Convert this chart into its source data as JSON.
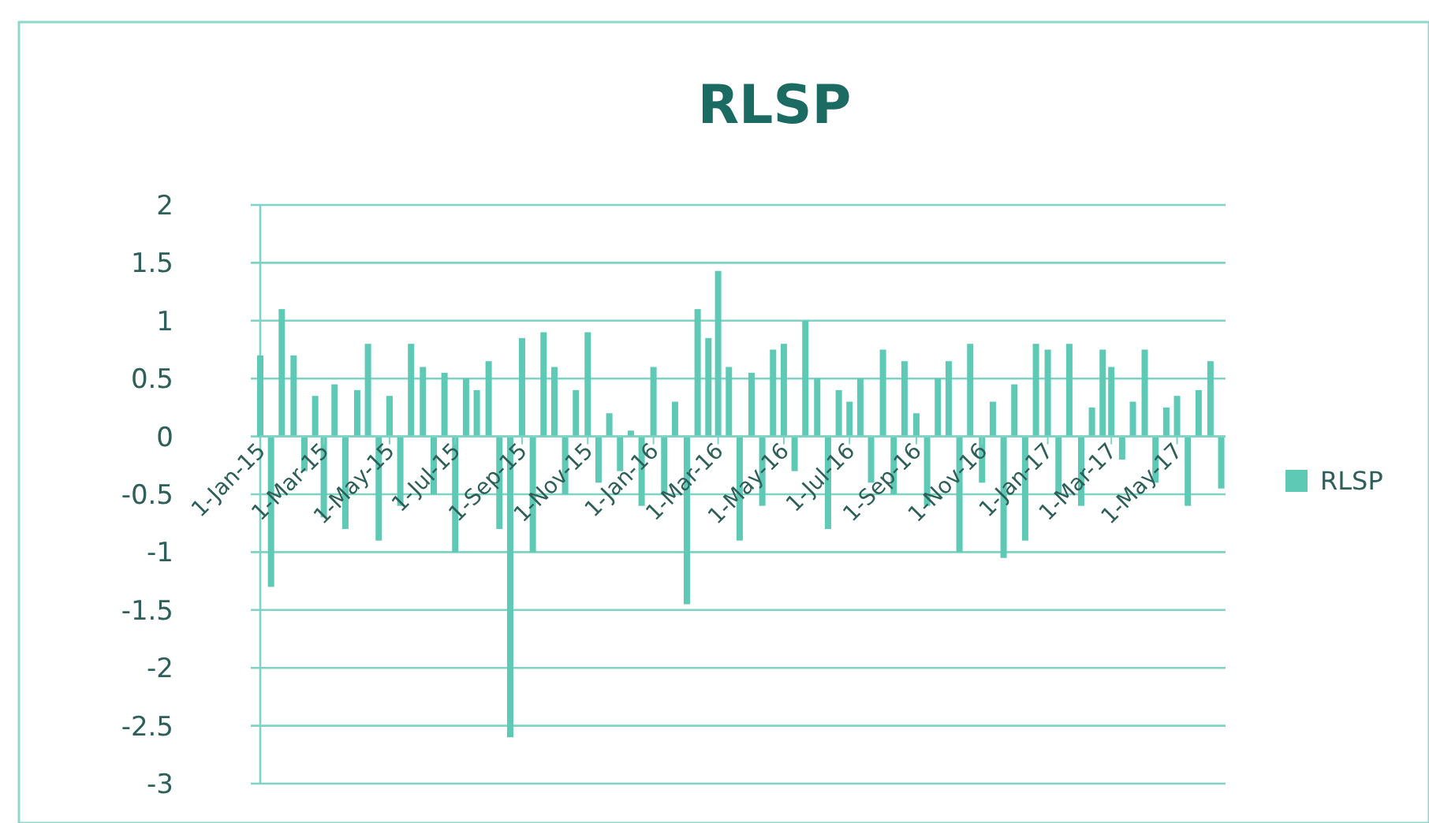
{
  "chart_data": {
    "type": "bar",
    "title": "RLSP",
    "x": [
      "2015-01-01",
      "2015-01-11",
      "2015-01-21",
      "2015-02-01",
      "2015-02-11",
      "2015-02-21",
      "2015-03-01",
      "2015-03-11",
      "2015-03-21",
      "2015-04-01",
      "2015-04-11",
      "2015-04-21",
      "2015-05-01",
      "2015-05-11",
      "2015-05-21",
      "2015-06-01",
      "2015-06-11",
      "2015-06-21",
      "2015-07-01",
      "2015-07-11",
      "2015-07-21",
      "2015-08-01",
      "2015-08-11",
      "2015-08-21",
      "2015-09-01",
      "2015-09-11",
      "2015-09-21",
      "2015-10-01",
      "2015-10-11",
      "2015-10-21",
      "2015-11-01",
      "2015-11-11",
      "2015-11-21",
      "2015-12-01",
      "2015-12-11",
      "2015-12-21",
      "2016-01-01",
      "2016-01-11",
      "2016-01-21",
      "2016-02-01",
      "2016-02-11",
      "2016-02-21",
      "2016-03-01",
      "2016-03-11",
      "2016-03-21",
      "2016-04-01",
      "2016-04-11",
      "2016-04-21",
      "2016-05-01",
      "2016-05-11",
      "2016-05-21",
      "2016-06-01",
      "2016-06-11",
      "2016-06-21",
      "2016-07-01",
      "2016-07-11",
      "2016-07-21",
      "2016-08-01",
      "2016-08-11",
      "2016-08-21",
      "2016-09-01",
      "2016-09-11",
      "2016-09-21",
      "2016-10-01",
      "2016-10-11",
      "2016-10-21",
      "2016-11-01",
      "2016-11-11",
      "2016-11-21",
      "2016-12-01",
      "2016-12-11",
      "2016-12-21",
      "2017-01-01",
      "2017-01-11",
      "2017-01-21",
      "2017-02-01",
      "2017-02-11",
      "2017-02-21",
      "2017-03-01",
      "2017-03-11",
      "2017-03-21",
      "2017-04-01",
      "2017-04-11",
      "2017-04-21",
      "2017-05-01",
      "2017-05-11",
      "2017-05-21",
      "2017-06-01",
      "2017-06-11"
    ],
    "series": [
      {
        "name": "RLSP",
        "color": "#5ec9b5",
        "values": [
          0.7,
          -1.3,
          1.1,
          0.7,
          -0.3,
          0.35,
          -0.7,
          0.45,
          -0.8,
          0.4,
          0.8,
          -0.9,
          0.35,
          -0.6,
          0.8,
          0.6,
          -0.5,
          0.55,
          -1.0,
          0.5,
          0.4,
          0.65,
          -0.8,
          -2.6,
          0.85,
          -1.0,
          0.9,
          0.6,
          -0.5,
          0.4,
          0.9,
          -0.4,
          0.2,
          -0.3,
          0.05,
          -0.6,
          0.6,
          -0.5,
          0.3,
          -1.45,
          1.1,
          0.85,
          1.43,
          0.6,
          -0.9,
          0.55,
          -0.6,
          0.75,
          0.8,
          -0.3,
          1.0,
          0.5,
          -0.8,
          0.4,
          0.3,
          0.5,
          -0.4,
          0.75,
          -0.5,
          0.65,
          0.2,
          -0.6,
          0.5,
          0.65,
          -1.0,
          0.8,
          -0.4,
          0.3,
          -1.05,
          0.45,
          -0.9,
          0.8,
          0.75,
          -0.5,
          0.8,
          -0.6,
          0.25,
          0.75,
          0.6,
          -0.2,
          0.3,
          0.75,
          -0.4,
          0.25,
          0.35,
          -0.6,
          0.4,
          0.65,
          -0.45
        ]
      }
    ],
    "xlim": [
      "2015-01-01",
      "2017-06-15"
    ],
    "xticks": [
      {
        "value": "2015-01-01",
        "label": "1-Jan-15"
      },
      {
        "value": "2015-03-01",
        "label": "1-Mar-15"
      },
      {
        "value": "2015-05-01",
        "label": "1-May-15"
      },
      {
        "value": "2015-07-01",
        "label": "1-Jul-15"
      },
      {
        "value": "2015-09-01",
        "label": "1-Sep-15"
      },
      {
        "value": "2015-11-01",
        "label": "1-Nov-15"
      },
      {
        "value": "2016-01-01",
        "label": "1-Jan-16"
      },
      {
        "value": "2016-03-01",
        "label": "1-Mar-16"
      },
      {
        "value": "2016-05-01",
        "label": "1-May-16"
      },
      {
        "value": "2016-07-01",
        "label": "1-Jul-16"
      },
      {
        "value": "2016-09-01",
        "label": "1-Sep-16"
      },
      {
        "value": "2016-11-01",
        "label": "1-Nov-16"
      },
      {
        "value": "2017-01-01",
        "label": "1-Jan-17"
      },
      {
        "value": "2017-03-01",
        "label": "1-Mar-17"
      },
      {
        "value": "2017-05-01",
        "label": "1-May-17"
      }
    ],
    "ylim": [
      -3,
      2
    ],
    "yticks": [
      -3,
      -2.5,
      -2,
      -1.5,
      -1,
      -0.5,
      0,
      0.5,
      1,
      1.5,
      2
    ],
    "grid": "y",
    "legend": "right"
  }
}
